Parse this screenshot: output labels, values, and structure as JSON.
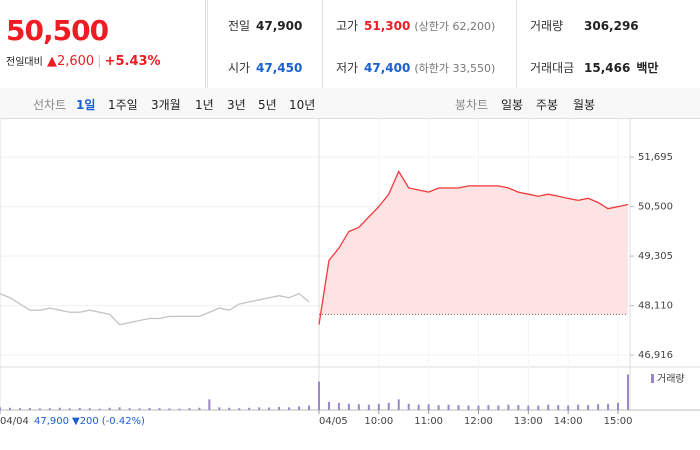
{
  "quote": {
    "price": "50,500",
    "change_label": "전일대비",
    "change": "▲2,600",
    "change_pct": "+5.43%",
    "rows": [
      [
        {
          "label": "전일",
          "value": "47,900"
        },
        {
          "label": "고가",
          "value": "51,300",
          "note": "(상한가 62,200)"
        },
        {
          "label": "거래량",
          "value": "306,296"
        }
      ],
      [
        {
          "label": "시가",
          "value": "47,450"
        },
        {
          "label": "저가",
          "value": "47,400",
          "note": "(하한가 33,550)"
        },
        {
          "label": "거래대금",
          "value": "15,466",
          "unit": "백만"
        }
      ]
    ]
  },
  "tabs": {
    "line_label": "선차트",
    "line_periods": [
      "1일",
      "1주일",
      "3개월",
      "1년",
      "3년",
      "5년",
      "10년"
    ],
    "active_index": 0,
    "candle_label": "봉차트",
    "candle_periods": [
      "일봉",
      "주봉",
      "월봉"
    ]
  },
  "prev_day": {
    "close": "47,900",
    "change": "▼200",
    "change_pct": "(-0.42%)"
  },
  "chart_data": {
    "type": "line",
    "categories": [
      "04/04",
      null,
      null,
      null,
      null,
      null,
      null,
      null,
      null,
      null,
      null,
      null,
      null,
      null,
      null,
      null,
      null,
      null,
      null,
      null,
      null,
      null,
      null,
      null,
      null,
      null,
      null,
      null,
      null,
      null,
      null,
      null,
      "04/05",
      null,
      null,
      null,
      null,
      null,
      "10:00",
      null,
      null,
      null,
      null,
      "11:00",
      null,
      null,
      null,
      null,
      "12:00",
      null,
      null,
      null,
      null,
      "13:00",
      null,
      null,
      null,
      "14:00",
      null,
      null,
      null,
      null,
      "15:00",
      null
    ],
    "series": [
      {
        "color": "#c4c4c4",
        "values": [
          48400,
          48300,
          48150,
          48000,
          48000,
          48050,
          48000,
          47950,
          47950,
          48000,
          47950,
          47900,
          47650,
          47700,
          47750,
          47800,
          47800,
          47850,
          47850,
          47850,
          47850,
          47950,
          48050,
          48000,
          48150,
          48200,
          48250,
          48300,
          48350,
          48300,
          48400,
          48200,
          null,
          null,
          null,
          null,
          null,
          null,
          null,
          null,
          null,
          null,
          null,
          null,
          null,
          null,
          null,
          null,
          null,
          null,
          null,
          null,
          null,
          null,
          null,
          null,
          null,
          null,
          null,
          null,
          null,
          null,
          null,
          null
        ]
      },
      {
        "color": "#f2383a",
        "fill": "#fde3e3",
        "values": [
          null,
          null,
          null,
          null,
          null,
          null,
          null,
          null,
          null,
          null,
          null,
          null,
          null,
          null,
          null,
          null,
          null,
          null,
          null,
          null,
          null,
          null,
          null,
          null,
          null,
          null,
          null,
          null,
          null,
          null,
          null,
          null,
          47650,
          49200,
          49500,
          49900,
          50000,
          50250,
          50500,
          50800,
          51350,
          50950,
          50900,
          50850,
          50950,
          50950,
          50950,
          51000,
          51000,
          51000,
          51000,
          50950,
          50850,
          50800,
          50750,
          50800,
          50750,
          50700,
          50650,
          50700,
          50600,
          50450,
          50500,
          50550
        ]
      }
    ],
    "baseline": 47900,
    "ylim": [
      46725,
      52470
    ],
    "yticks": [
      {
        "value": 51695,
        "label": "51,695"
      },
      {
        "value": 50500,
        "label": "50,500"
      },
      {
        "value": 49305,
        "label": "49,305"
      },
      {
        "value": 48110,
        "label": "48,110"
      },
      {
        "value": 46916,
        "label": "46,916"
      }
    ],
    "grid": true,
    "volume": {
      "name": "거래량",
      "color": "#9a86c8",
      "ylim": [
        0,
        45000
      ],
      "values": [
        3000,
        2500,
        2000,
        2200,
        1800,
        2000,
        2500,
        1800,
        2200,
        2000,
        1500,
        2500,
        3000,
        2000,
        1800,
        2200,
        2000,
        1800,
        1500,
        2000,
        2500,
        12000,
        3000,
        2500,
        2000,
        2500,
        3000,
        2800,
        3500,
        3000,
        4000,
        5000,
        32000,
        9000,
        8000,
        7000,
        6500,
        6000,
        7000,
        8000,
        12000,
        7000,
        6000,
        6500,
        5500,
        6000,
        5500,
        5000,
        5000,
        5500,
        5000,
        6000,
        5500,
        5000,
        5000,
        6000,
        5500,
        5000,
        6000,
        5500,
        6500,
        7000,
        8000,
        40000
      ]
    }
  }
}
